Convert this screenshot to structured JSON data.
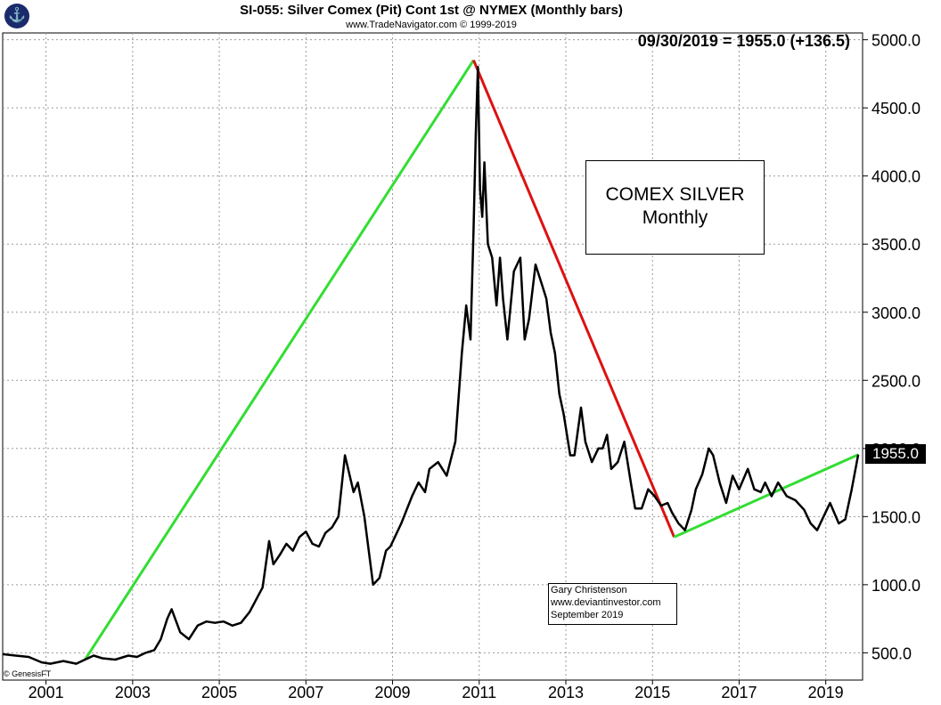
{
  "header": {
    "title": "SI-055:  Silver Comex (Pit) Cont 1st @ NYMEX  (Monthly bars)",
    "subtitle": "www.TradeNavigator.com © 1999-2019",
    "last_value": "09/30/2019 = 1955.0 (+136.5)"
  },
  "annotations": {
    "box_line1": "COMEX SILVER",
    "box_line2": "Monthly",
    "author": "Gary Christenson",
    "site": "www.deviantinvestor.com",
    "date": "September 2019",
    "copyright": "© GenesisFT",
    "price_tag": "1955.0"
  },
  "colors": {
    "price": "#000000",
    "uptrend": "#33dd33",
    "downtrend": "#dd1111",
    "grid": "#999999",
    "logo": "#1a2a6c"
  },
  "chart_data": {
    "type": "line",
    "ylim": [
      300,
      5050
    ],
    "xlim": [
      2000.0,
      2019.85
    ],
    "yticks": [
      "500.0",
      "1000.0",
      "1500.0",
      "2000.0",
      "2500.0",
      "3000.0",
      "3500.0",
      "4000.0",
      "4500.0",
      "5000.0"
    ],
    "ytick_values": [
      500,
      1000,
      1500,
      2000,
      2500,
      3000,
      3500,
      4000,
      4500,
      5000
    ],
    "xticks": [
      "2001",
      "2003",
      "2005",
      "2007",
      "2009",
      "2011",
      "2013",
      "2015",
      "2017",
      "2019"
    ],
    "xtick_values": [
      2001.0,
      2003.0,
      2005.0,
      2007.0,
      2009.0,
      2011.0,
      2013.0,
      2015.0,
      2017.0,
      2019.0
    ],
    "grid": true,
    "series": [
      {
        "x": [
          2000.0,
          2000.3,
          2000.6,
          2000.9,
          2001.1,
          2001.4,
          2001.7,
          2001.9,
          2002.1,
          2002.3,
          2002.6,
          2002.9,
          2003.1,
          2003.3,
          2003.5,
          2003.65,
          2003.8,
          2003.9,
          2004.1,
          2004.3,
          2004.5,
          2004.7,
          2004.9,
          2005.1,
          2005.3,
          2005.5,
          2005.7,
          2005.85,
          2006.0,
          2006.15,
          2006.25,
          2006.4,
          2006.55,
          2006.7,
          2006.85,
          2007.0,
          2007.15,
          2007.3,
          2007.45,
          2007.6,
          2007.75,
          2007.9,
          2008.1,
          2008.2,
          2008.35,
          2008.55,
          2008.7,
          2008.85,
          2008.95,
          2009.2,
          2009.45,
          2009.6,
          2009.75,
          2009.85,
          2010.05,
          2010.25,
          2010.45,
          2010.6,
          2010.7,
          2010.8,
          2010.87,
          2010.92,
          2010.97,
          2011.02,
          2011.07,
          2011.12,
          2011.2,
          2011.3,
          2011.4,
          2011.48,
          2011.55,
          2011.65,
          2011.8,
          2011.95,
          2012.05,
          2012.15,
          2012.3,
          2012.45,
          2012.55,
          2012.65,
          2012.75,
          2012.85,
          2012.95,
          2013.1,
          2013.2,
          2013.35,
          2013.45,
          2013.6,
          2013.75,
          2013.85,
          2013.95,
          2014.05,
          2014.2,
          2014.35,
          2014.5,
          2014.6,
          2014.75,
          2014.9,
          2015.05,
          2015.2,
          2015.35,
          2015.45,
          2015.6,
          2015.75,
          2015.9,
          2016.0,
          2016.15,
          2016.3,
          2016.4,
          2016.55,
          2016.7,
          2016.85,
          2017.0,
          2017.2,
          2017.35,
          2017.5,
          2017.6,
          2017.75,
          2017.9,
          2018.1,
          2018.3,
          2018.5,
          2018.65,
          2018.8,
          2018.95,
          2019.1,
          2019.3,
          2019.45,
          2019.6,
          2019.75
        ],
        "values": [
          490,
          480,
          470,
          430,
          420,
          440,
          420,
          450,
          480,
          460,
          450,
          480,
          470,
          500,
          520,
          600,
          750,
          820,
          650,
          600,
          700,
          730,
          720,
          730,
          700,
          720,
          800,
          890,
          980,
          1320,
          1150,
          1220,
          1300,
          1250,
          1350,
          1390,
          1300,
          1280,
          1380,
          1420,
          1500,
          1950,
          1680,
          1750,
          1500,
          1000,
          1050,
          1250,
          1280,
          1450,
          1650,
          1750,
          1680,
          1850,
          1900,
          1800,
          2050,
          2700,
          3050,
          2800,
          3600,
          4300,
          4800,
          3900,
          3700,
          4100,
          3500,
          3400,
          3050,
          3400,
          3100,
          2800,
          3300,
          3400,
          2800,
          2950,
          3350,
          3200,
          3100,
          2850,
          2700,
          2400,
          2250,
          1950,
          1950,
          2300,
          2050,
          1900,
          2000,
          2000,
          2100,
          1850,
          1900,
          2050,
          1750,
          1560,
          1560,
          1700,
          1650,
          1580,
          1600,
          1530,
          1450,
          1400,
          1550,
          1700,
          1810,
          2000,
          1950,
          1750,
          1600,
          1800,
          1700,
          1850,
          1700,
          1680,
          1750,
          1650,
          1750,
          1650,
          1620,
          1550,
          1450,
          1400,
          1500,
          1600,
          1450,
          1480,
          1700,
          1955
        ]
      }
    ],
    "trendlines": [
      {
        "x": [
          2001.9,
          2010.87
        ],
        "y": [
          450,
          4850
        ]
      },
      {
        "x": [
          2010.87,
          2015.5
        ],
        "y": [
          4850,
          1350
        ]
      },
      {
        "x": [
          2015.5,
          2019.75
        ],
        "y": [
          1350,
          1955
        ]
      }
    ]
  }
}
